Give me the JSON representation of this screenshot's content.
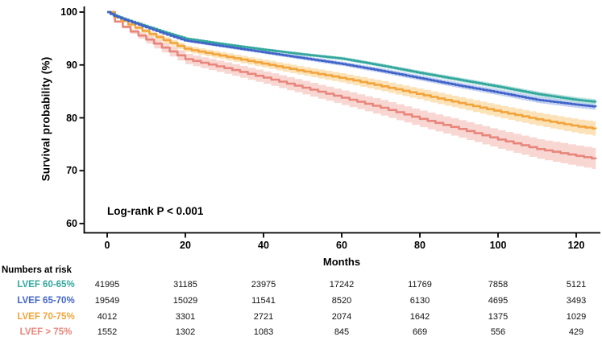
{
  "chart_data": {
    "type": "line",
    "title": "",
    "ylabel": "Survival probability (%)",
    "xlabel": "Months",
    "annotation": "Log-rank P < 0.001",
    "x_ticks": [
      0,
      20,
      40,
      60,
      80,
      100,
      120
    ],
    "y_ticks": [
      60,
      70,
      80,
      90,
      100
    ],
    "xlim": [
      0,
      126
    ],
    "ylim": [
      58,
      101
    ],
    "x_max_data": 125,
    "grid": false,
    "legend_position": "bottom-risk-table",
    "axis_color": "#000000",
    "x_anchors": [
      0,
      2,
      5,
      10,
      15,
      20,
      30,
      40,
      50,
      60,
      70,
      80,
      90,
      100,
      110,
      120,
      125
    ],
    "series": [
      {
        "name": "LVEF 60-65%",
        "color": "#33A79D",
        "band_color": "#B8E2DE",
        "ci_start": 0.15,
        "ci_end": 0.5,
        "step_months": 0.8,
        "values": [
          100,
          99.3,
          98.5,
          97.3,
          96.1,
          95.0,
          93.9,
          92.9,
          92.0,
          91.2,
          89.9,
          88.5,
          87.2,
          85.9,
          84.5,
          83.4,
          83.0
        ]
      },
      {
        "name": "LVEF 65-70%",
        "color": "#4164C9",
        "band_color": "#C4D1F1",
        "ci_start": 0.2,
        "ci_end": 0.65,
        "step_months": 0.9,
        "values": [
          100,
          99.2,
          98.4,
          97.1,
          95.8,
          94.6,
          93.5,
          92.4,
          91.3,
          90.2,
          88.9,
          87.5,
          86.1,
          84.8,
          83.4,
          82.5,
          82.1
        ]
      },
      {
        "name": "LVEF 70-75%",
        "color": "#F2A43C",
        "band_color": "#FBE2B8",
        "ci_start": 0.45,
        "ci_end": 1.35,
        "step_months": 1.8,
        "values": [
          100,
          98.9,
          97.8,
          96.1,
          94.5,
          93.0,
          91.6,
          90.2,
          88.8,
          87.5,
          86.0,
          84.4,
          82.8,
          81.2,
          79.7,
          78.4,
          77.9
        ]
      },
      {
        "name": "LVEF > 75%",
        "color": "#E8867C",
        "band_color": "#F8D7D3",
        "ci_start": 0.8,
        "ci_end": 2.0,
        "step_months": 2.0,
        "values": [
          100,
          98.2,
          96.7,
          94.8,
          92.9,
          91.1,
          89.4,
          87.6,
          85.7,
          83.8,
          81.9,
          79.8,
          77.9,
          75.9,
          74.1,
          72.8,
          72.2
        ]
      }
    ]
  },
  "risk_table": {
    "title": "Numbers at risk",
    "columns": [
      0,
      20,
      40,
      60,
      80,
      100,
      120
    ],
    "rows": [
      {
        "label": "LVEF 60-65%",
        "color": "#33A79D",
        "counts": [
          41995,
          31185,
          23975,
          17242,
          11769,
          7858,
          5121
        ]
      },
      {
        "label": "LVEF 65-70%",
        "color": "#4164C9",
        "counts": [
          19549,
          15029,
          11541,
          8520,
          6130,
          4695,
          3493
        ]
      },
      {
        "label": "LVEF 70-75%",
        "color": "#F2A43C",
        "counts": [
          4012,
          3301,
          2721,
          2074,
          1642,
          1375,
          1029
        ]
      },
      {
        "label": "LVEF > 75%",
        "color": "#E8867C",
        "counts": [
          1552,
          1302,
          1083,
          845,
          669,
          556,
          429
        ]
      }
    ]
  }
}
